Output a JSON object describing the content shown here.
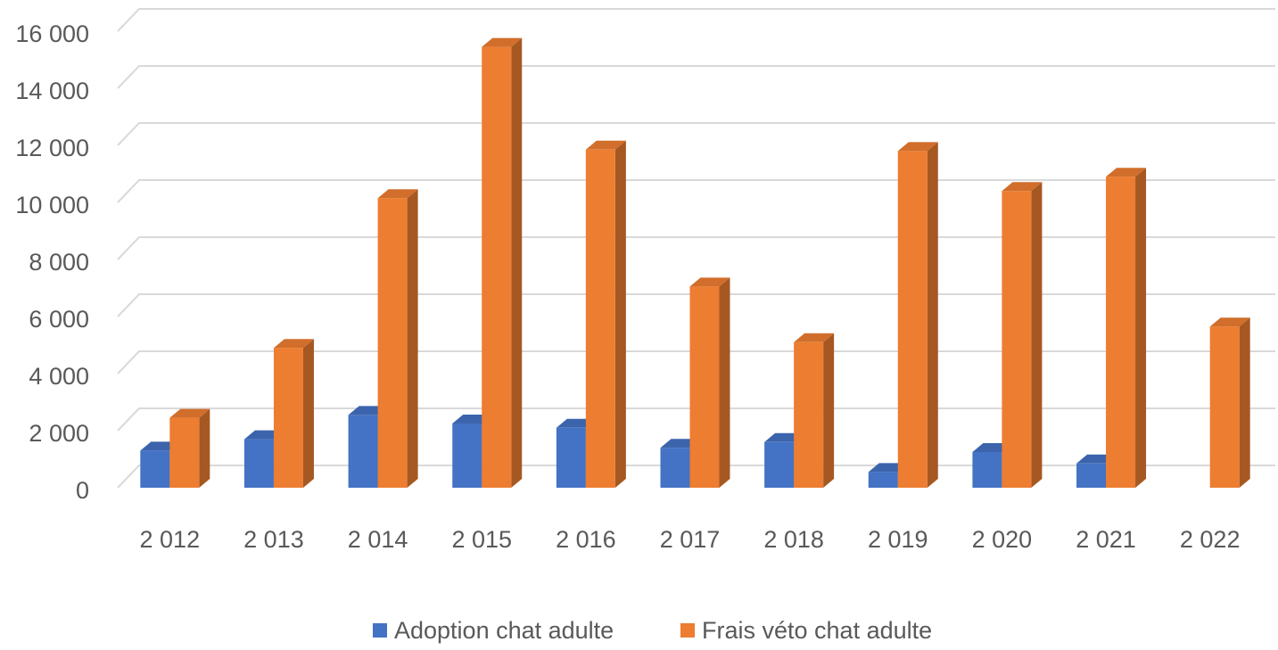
{
  "chart_data": {
    "type": "bar3d",
    "categories": [
      "2 012",
      "2 013",
      "2 014",
      "2 015",
      "2 016",
      "2 017",
      "2 018",
      "2 019",
      "2 020",
      "2 021",
      "2 022"
    ],
    "series": [
      {
        "name": "Adoption chat adulte",
        "color": "#4472c4",
        "values": [
          1300,
          1700,
          2550,
          2250,
          2100,
          1400,
          1600,
          550,
          1250,
          850,
          null
        ]
      },
      {
        "name": "Frais véto chat adulte",
        "color": "#ed7d31",
        "values": [
          2450,
          4900,
          10150,
          15450,
          11850,
          7050,
          5100,
          11800,
          10400,
          10900,
          5650
        ]
      }
    ],
    "ylim": [
      0,
      16000
    ],
    "yticks": [
      0,
      {
        "value": 2000,
        "label": "2 000"
      },
      {
        "value": 4000,
        "label": "4 000"
      },
      {
        "value": 6000,
        "label": "6 000"
      },
      {
        "value": 8000,
        "label": "8 000"
      },
      {
        "value": 10000,
        "label": "10 000"
      },
      {
        "value": 12000,
        "label": "12 000"
      },
      {
        "value": 14000,
        "label": "14 000"
      },
      {
        "value": 16000,
        "label": "16 000"
      }
    ],
    "grid": true,
    "legend": "bottom"
  }
}
